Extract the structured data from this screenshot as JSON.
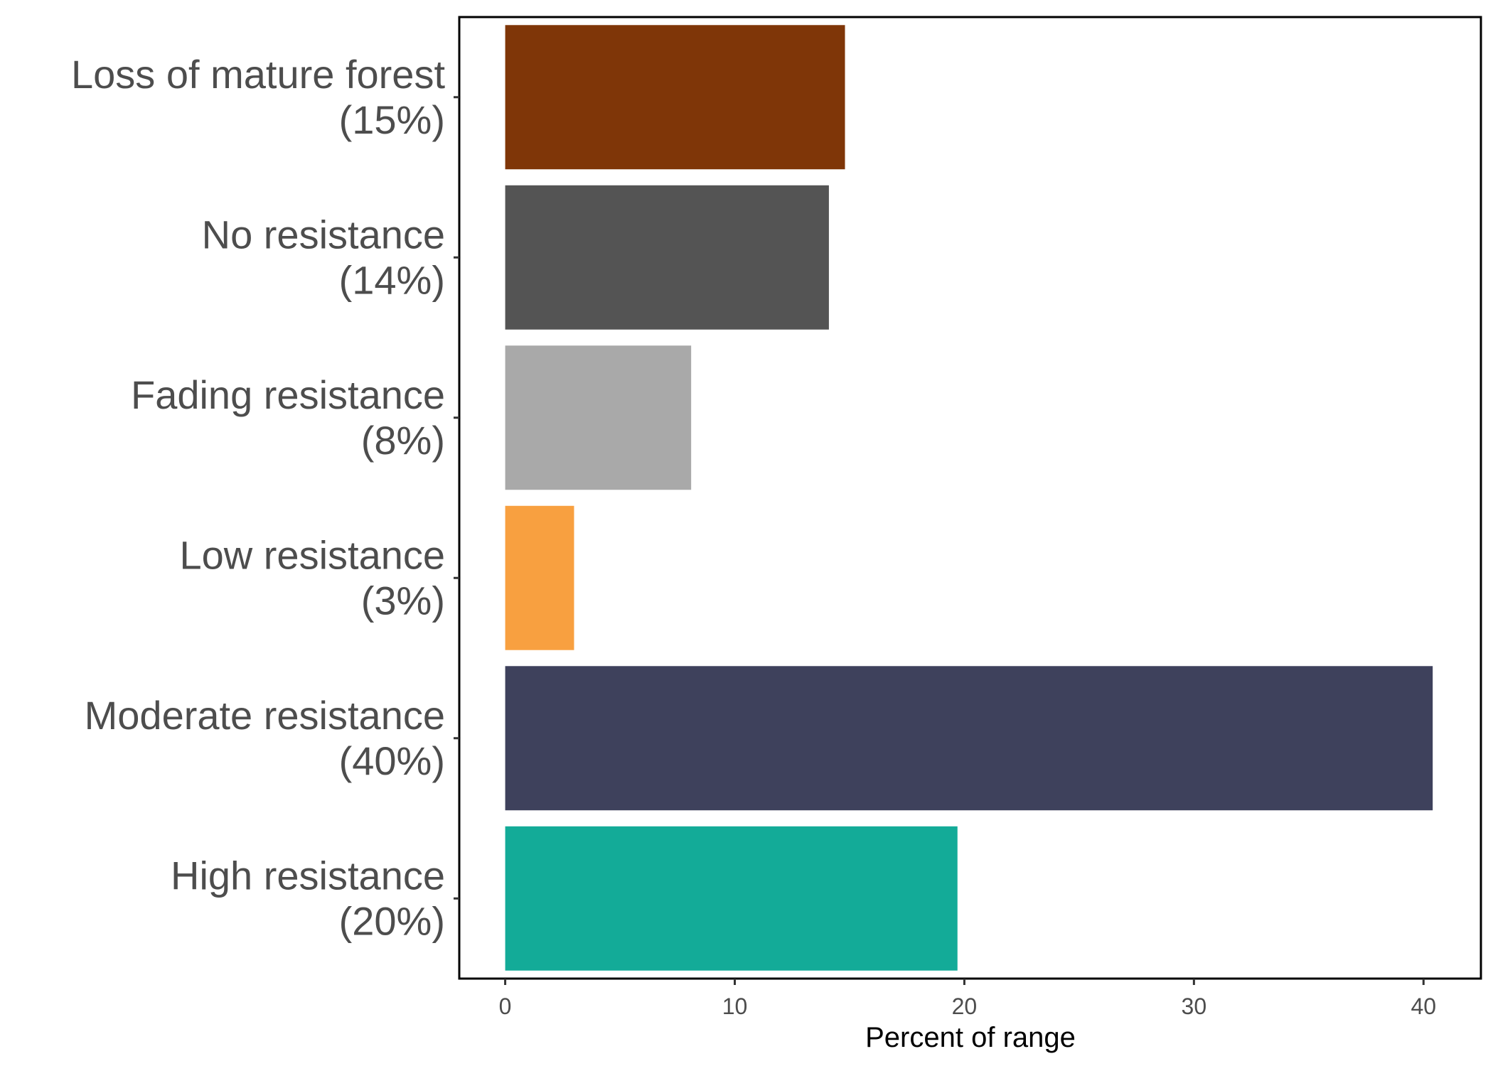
{
  "chart_data": {
    "type": "bar",
    "orientation": "horizontal",
    "categories": [
      [
        "Loss of mature forest",
        "(15%)"
      ],
      [
        "No resistance",
        "(14%)"
      ],
      [
        "Fading resistance",
        "(8%)"
      ],
      [
        "Low resistance",
        "(3%)"
      ],
      [
        "Moderate resistance",
        "(40%)"
      ],
      [
        "High resistance",
        "(20%)"
      ]
    ],
    "values": [
      14.8,
      14.1,
      8.1,
      3.0,
      40.4,
      19.7
    ],
    "colors": [
      "#7f3608",
      "#545454",
      "#a9a9a9",
      "#f8a040",
      "#3e415c",
      "#13ab98"
    ],
    "xlabel": "Percent of range",
    "ylabel": "",
    "xlim": [
      -2,
      42.5
    ],
    "xticks": [
      0,
      10,
      20,
      30,
      40
    ],
    "grid": false,
    "legend": "none"
  }
}
